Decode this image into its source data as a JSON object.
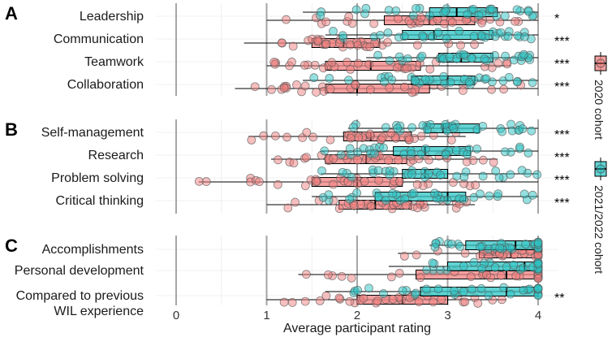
{
  "chart_data": {
    "type": "box",
    "xlabel": "Average participant rating",
    "xlim": [
      0,
      4
    ],
    "x_ticks": [
      "0",
      "1",
      "2",
      "3",
      "4"
    ],
    "legend": {
      "position": "right",
      "entries": [
        {
          "name": "2020 cohort",
          "color": "#f08080"
        },
        {
          "name": "2021/2022 cohort",
          "color": "#2ec4c4"
        }
      ]
    },
    "panels": [
      {
        "tag": "A",
        "categories": [
          {
            "label": "Leadership",
            "sig": "*",
            "c2020": {
              "min": 1.0,
              "q1": 2.3,
              "median": 2.8,
              "q3": 3.3,
              "max": 4.0
            },
            "c2021": {
              "min": 1.4,
              "q1": 2.8,
              "median": 3.1,
              "q3": 3.55,
              "max": 4.0
            }
          },
          {
            "label": "Communication",
            "sig": "***",
            "c2020": {
              "min": 0.75,
              "q1": 1.5,
              "median": 1.85,
              "q3": 2.25,
              "max": 3.4
            },
            "c2021": {
              "min": 1.65,
              "q1": 2.5,
              "median": 2.85,
              "q3": 3.5,
              "max": 4.0
            }
          },
          {
            "label": "Teamwork",
            "sig": "***",
            "c2020": {
              "min": 1.0,
              "q1": 1.65,
              "median": 2.15,
              "q3": 2.7,
              "max": 3.7
            },
            "c2021": {
              "min": 2.1,
              "q1": 2.9,
              "median": 3.15,
              "q3": 3.5,
              "max": 4.0
            }
          },
          {
            "label": "Collaboration",
            "sig": "***",
            "c2020": {
              "min": 0.65,
              "q1": 1.65,
              "median": 2.0,
              "q3": 2.8,
              "max": 4.0
            },
            "c2021": {
              "min": 1.4,
              "q1": 2.6,
              "median": 3.0,
              "q3": 3.3,
              "max": 4.0
            }
          }
        ]
      },
      {
        "tag": "B",
        "categories": [
          {
            "label": "Self-management",
            "sig": "***",
            "c2020": {
              "min": 0.8,
              "q1": 1.85,
              "median": 2.15,
              "q3": 2.6,
              "max": 3.2
            },
            "c2021": {
              "min": 1.9,
              "q1": 2.75,
              "median": 2.95,
              "q3": 3.35,
              "max": 4.0
            }
          },
          {
            "label": "Research",
            "sig": "***",
            "c2020": {
              "min": 1.05,
              "q1": 1.65,
              "median": 2.1,
              "q3": 2.55,
              "max": 3.55
            },
            "c2021": {
              "min": 1.6,
              "q1": 2.4,
              "median": 2.75,
              "q3": 3.25,
              "max": 4.0
            }
          },
          {
            "label": "Problem solving",
            "sig": "***",
            "c2020": {
              "min": 0.25,
              "q1": 1.5,
              "median": 2.0,
              "q3": 2.5,
              "max": 4.0
            },
            "c2021": {
              "min": 1.6,
              "q1": 2.5,
              "median": 2.75,
              "q3": 3.0,
              "max": 4.0
            }
          },
          {
            "label": "Critical thinking",
            "sig": "***",
            "c2020": {
              "min": 1.0,
              "q1": 1.8,
              "median": 2.2,
              "q3": 2.6,
              "max": 3.3
            },
            "c2021": {
              "min": 1.5,
              "q1": 2.2,
              "median": 3.0,
              "q3": 3.2,
              "max": 4.0
            }
          }
        ]
      },
      {
        "tag": "C",
        "categories": [
          {
            "label": "Accomplishments",
            "sig": "",
            "c2020": {
              "min": 2.45,
              "q1": 3.35,
              "median": 3.7,
              "q3": 4.0,
              "max": 4.0
            },
            "c2021": {
              "min": 2.8,
              "q1": 3.2,
              "median": 3.75,
              "q3": 4.0,
              "max": 4.0
            }
          },
          {
            "label": "Personal development",
            "sig": "",
            "c2020": {
              "min": 1.35,
              "q1": 2.65,
              "median": 3.65,
              "q3": 4.0,
              "max": 4.0
            },
            "c2021": {
              "min": 2.35,
              "q1": 3.0,
              "median": 3.85,
              "q3": 4.0,
              "max": 4.0
            }
          },
          {
            "label": "Compared to previous\nWIL experience",
            "sig": "**",
            "c2020": {
              "min": 1.0,
              "q1": 2.0,
              "median": 2.5,
              "q3": 3.0,
              "max": 3.65
            },
            "c2021": {
              "min": 1.65,
              "q1": 2.7,
              "median": 3.65,
              "q3": 4.0,
              "max": 4.0
            }
          }
        ]
      }
    ]
  }
}
